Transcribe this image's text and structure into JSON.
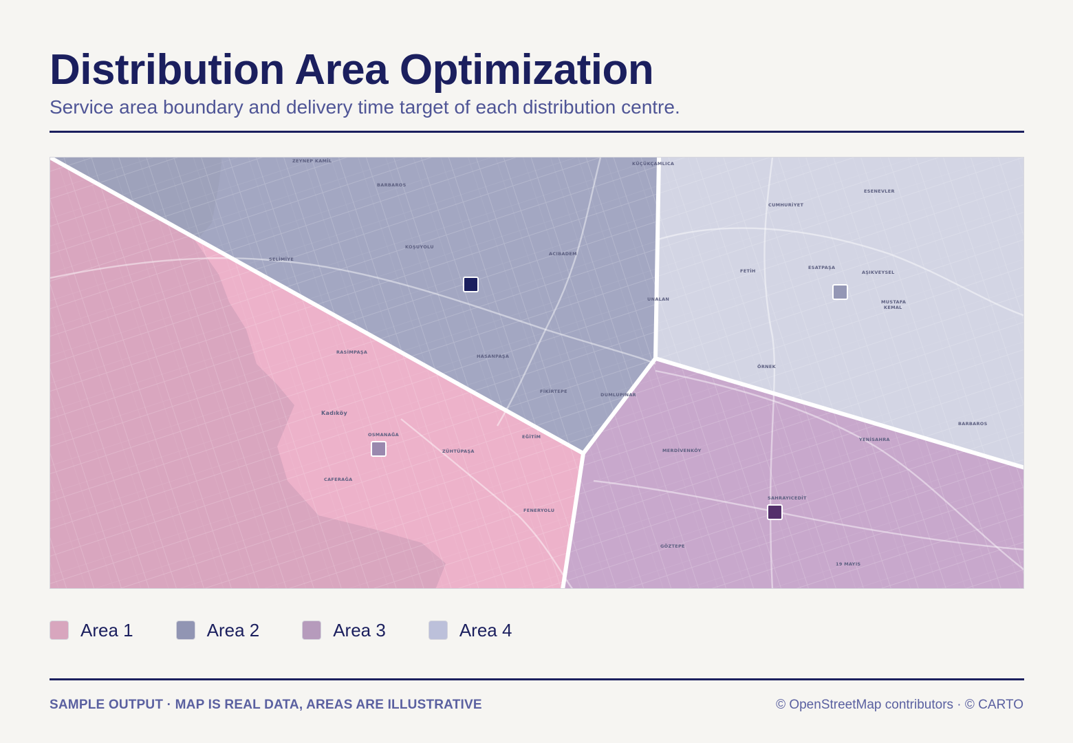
{
  "title": "Distribution Area Optimization",
  "subtitle": "Service area boundary and delivery time target of each distribution centre.",
  "areas": [
    {
      "label": "Area 1",
      "color": "#d8a6be",
      "center_color": "#9a88ae"
    },
    {
      "label": "Area 2",
      "color": "#9195b3",
      "center_color": "#1b1f5e"
    },
    {
      "label": "Area 3",
      "color": "#b69bbc",
      "center_color": "#54306b"
    },
    {
      "label": "Area 4",
      "color": "#bcc0da",
      "center_color": "#9497b5"
    }
  ],
  "map_labels": [
    {
      "text": "ZEYNEP KAMİL"
    },
    {
      "text": "KÜÇÜKÇAMLICA"
    },
    {
      "text": "BARBAROS"
    },
    {
      "text": "SELİMİYE"
    },
    {
      "text": "KOŞUYOLU"
    },
    {
      "text": "ACIBADEM"
    },
    {
      "text": "HASANPAŞA"
    },
    {
      "text": "FİKİRTEPE"
    },
    {
      "text": "DUMLUPINAR"
    },
    {
      "text": "ESENEVLER"
    },
    {
      "text": "CUMHURİYET"
    },
    {
      "text": "ESATPAŞA"
    },
    {
      "text": "AŞIKVEYSEL"
    },
    {
      "text": "FETİH"
    },
    {
      "text": "MUSTAFA"
    },
    {
      "text": "KEMAL"
    },
    {
      "text": "ÖRNEK"
    },
    {
      "text": "BARBAROS"
    },
    {
      "text": "RASİMPAŞA"
    },
    {
      "text": "Kadıköy"
    },
    {
      "text": "OSMANAĞA"
    },
    {
      "text": "ZÜHTÜPAŞA"
    },
    {
      "text": "EĞİTİM"
    },
    {
      "text": "CAFERAĞA"
    },
    {
      "text": "FENERYOLU"
    },
    {
      "text": "MERDİVENKÖY"
    },
    {
      "text": "YENİSAHRA"
    },
    {
      "text": "SAHRAYICEDİT"
    },
    {
      "text": "GÖZTEPE"
    },
    {
      "text": "19 MAYIS"
    },
    {
      "text": "UNALAN"
    }
  ],
  "footer": {
    "left": "SAMPLE OUTPUT · MAP IS REAL DATA, AREAS ARE ILLUSTRATIVE",
    "right": "© OpenStreetMap contributors · © CARTO"
  }
}
